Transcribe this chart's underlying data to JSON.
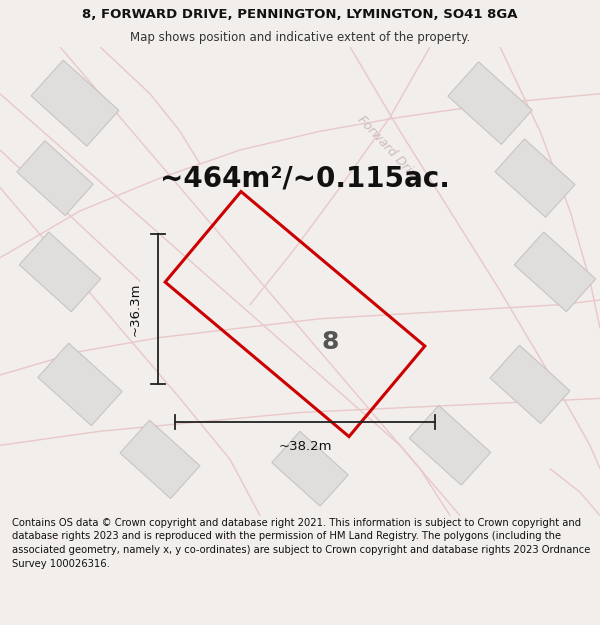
{
  "title_line1": "8, FORWARD DRIVE, PENNINGTON, LYMINGTON, SO41 8GA",
  "title_line2": "Map shows position and indicative extent of the property.",
  "area_text": "~464m²/~0.115ac.",
  "property_number": "8",
  "dim_width": "~38.2m",
  "dim_height": "~36.3m",
  "footer_text": "Contains OS data © Crown copyright and database right 2021. This information is subject to Crown copyright and database rights 2023 and is reproduced with the permission of HM Land Registry. The polygons (including the associated geometry, namely x, y co-ordinates) are subject to Crown copyright and database rights 2023 Ordnance Survey 100026316.",
  "bg_color": "#f2eeeb",
  "title_fontsize": 9.5,
  "subtitle_fontsize": 8.5,
  "area_fontsize": 20,
  "footer_fontsize": 7.2,
  "property_fill": "none",
  "property_edge": "#cc0000",
  "neighbor_fill": "#e0dedd",
  "neighbor_edge": "#c8c4c2",
  "road_color": "#e8c8c8",
  "street_label_color": "#c8b8b8"
}
